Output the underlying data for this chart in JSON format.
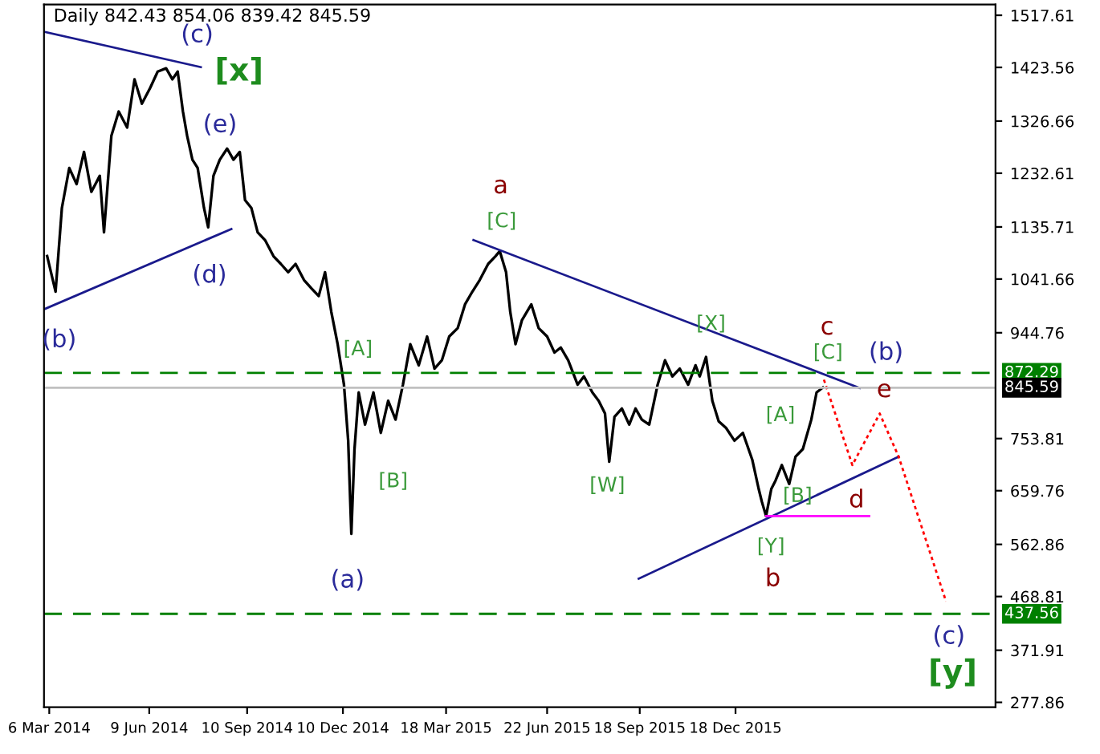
{
  "chart_data": {
    "type": "line",
    "title": "Daily 842.43 854.06 839.42 845.59",
    "xlim": [
      "2014-03-01",
      "2016-08-21"
    ],
    "ylim": [
      269,
      1537
    ],
    "xticks": [
      {
        "value": "2014-03-06",
        "label": "6 Mar 2014"
      },
      {
        "value": "2014-06-09",
        "label": "9 Jun 2014"
      },
      {
        "value": "2014-09-10",
        "label": "10 Sep 2014"
      },
      {
        "value": "2014-12-10",
        "label": "10 Dec 2014"
      },
      {
        "value": "2015-03-18",
        "label": "18 Mar 2015"
      },
      {
        "value": "2015-06-22",
        "label": "22 Jun 2015"
      },
      {
        "value": "2015-09-18",
        "label": "18 Sep 2015"
      },
      {
        "value": "2015-12-18",
        "label": "18 Dec 2015"
      }
    ],
    "yticks": [
      1517.61,
      1423.56,
      1326.66,
      1232.61,
      1135.71,
      1041.66,
      944.76,
      753.81,
      659.76,
      562.86,
      468.81,
      371.91,
      277.86
    ],
    "grid": false,
    "legend": false,
    "series": [
      {
        "color": "#000000",
        "line_style": "solid",
        "x": [
          "2014-03-04",
          "2014-03-12",
          "2014-03-18",
          "2014-03-25",
          "2014-04-01",
          "2014-04-08",
          "2014-04-15",
          "2014-04-23",
          "2014-04-27",
          "2014-05-04",
          "2014-05-11",
          "2014-05-19",
          "2014-05-26",
          "2014-06-02",
          "2014-06-10",
          "2014-06-17",
          "2014-06-25",
          "2014-07-01",
          "2014-07-06",
          "2014-07-11",
          "2014-07-15",
          "2014-07-20",
          "2014-07-25",
          "2014-07-31",
          "2014-08-04",
          "2014-08-09",
          "2014-08-15",
          "2014-08-22",
          "2014-08-28",
          "2014-09-03",
          "2014-09-08",
          "2014-09-14",
          "2014-09-20",
          "2014-09-27",
          "2014-10-05",
          "2014-10-12",
          "2014-10-19",
          "2014-10-26",
          "2014-11-03",
          "2014-11-10",
          "2014-11-17",
          "2014-11-23",
          "2014-11-29",
          "2014-12-05",
          "2014-12-11",
          "2014-12-15",
          "2014-12-18",
          "2014-12-21",
          "2014-12-25",
          "2014-12-31",
          "2015-01-08",
          "2015-01-15",
          "2015-01-22",
          "2015-01-29",
          "2015-02-05",
          "2015-02-12",
          "2015-02-20",
          "2015-02-28",
          "2015-03-07",
          "2015-03-14",
          "2015-03-21",
          "2015-03-29",
          "2015-04-05",
          "2015-04-12",
          "2015-04-19",
          "2015-04-27",
          "2015-05-04",
          "2015-05-08",
          "2015-05-14",
          "2015-05-18",
          "2015-05-23",
          "2015-05-29",
          "2015-06-07",
          "2015-06-14",
          "2015-06-22",
          "2015-06-29",
          "2015-07-05",
          "2015-07-12",
          "2015-07-21",
          "2015-07-27",
          "2015-08-04",
          "2015-08-10",
          "2015-08-16",
          "2015-08-20",
          "2015-08-25",
          "2015-09-01",
          "2015-09-08",
          "2015-09-14",
          "2015-09-20",
          "2015-09-27",
          "2015-10-05",
          "2015-10-12",
          "2015-10-19",
          "2015-10-26",
          "2015-11-03",
          "2015-11-10",
          "2015-11-14",
          "2015-11-20",
          "2015-11-26",
          "2015-12-02",
          "2015-12-09",
          "2015-12-17",
          "2015-12-25",
          "2016-01-03",
          "2016-01-09",
          "2016-01-12",
          "2016-01-16",
          "2016-01-21",
          "2016-01-25",
          "2016-01-31",
          "2016-02-07",
          "2016-02-13",
          "2016-02-20",
          "2016-02-28",
          "2016-03-04",
          "2016-03-10"
        ],
        "values": [
          1083,
          1019,
          1170,
          1242,
          1213,
          1271,
          1199,
          1228,
          1126,
          1300,
          1344,
          1315,
          1402,
          1358,
          1387,
          1416,
          1422,
          1402,
          1416,
          1344,
          1300,
          1257,
          1242,
          1170,
          1135,
          1228,
          1257,
          1277,
          1257,
          1271,
          1184,
          1170,
          1126,
          1112,
          1083,
          1069,
          1054,
          1069,
          1040,
          1025,
          1011,
          1054,
          982,
          924,
          851,
          750,
          582,
          735,
          837,
          779,
          837,
          764,
          822,
          788,
          851,
          924,
          886,
          938,
          880,
          895,
          938,
          953,
          996,
          1019,
          1040,
          1069,
          1083,
          1092,
          1054,
          982,
          924,
          967,
          996,
          953,
          938,
          909,
          918,
          895,
          851,
          866,
          837,
          822,
          799,
          712,
          793,
          808,
          779,
          808,
          788,
          779,
          851,
          895,
          866,
          880,
          851,
          886,
          866,
          901,
          822,
          785,
          773,
          750,
          764,
          715,
          663,
          640,
          614,
          663,
          678,
          706,
          672,
          721,
          735,
          788,
          837,
          846
        ]
      },
      {
        "color": "#1a1a8c",
        "line_style": "solid",
        "x": [
          "2014-03-01",
          "2014-07-28"
        ],
        "values": [
          1488,
          1424
        ]
      },
      {
        "color": "#1a1a8c",
        "line_style": "solid",
        "x": [
          "2014-03-01",
          "2014-08-26"
        ],
        "values": [
          987,
          1132
        ]
      },
      {
        "color": "#1a1a8c",
        "line_style": "solid",
        "x": [
          "2015-04-13",
          "2016-04-14"
        ],
        "values": [
          1112,
          845
        ]
      },
      {
        "color": "#1a1a8c",
        "line_style": "solid",
        "x": [
          "2015-09-17",
          "2016-05-21"
        ],
        "values": [
          501,
          721
        ]
      },
      {
        "color": "#ff00ff",
        "line_style": "solid",
        "x": [
          "2016-01-16",
          "2016-04-23"
        ],
        "values": [
          614,
          614
        ]
      },
      {
        "color": "#ff0000",
        "line_style": "dotted",
        "x": [
          "2016-03-11",
          "2016-04-07",
          "2016-05-03",
          "2016-05-21",
          "2016-07-05"
        ],
        "values": [
          860,
          706,
          799,
          721,
          460
        ]
      }
    ],
    "ref_lines": [
      {
        "axis": "y",
        "value": 872.29,
        "label": "872.29",
        "color": "#008000",
        "line_style": "dashed"
      },
      {
        "axis": "y",
        "value": 845.59,
        "label": "845.59",
        "color": "#c0c0c0",
        "line_style": "solid"
      },
      {
        "axis": "y",
        "value": 437.56,
        "label": "437.56",
        "color": "#008000",
        "line_style": "dashed"
      }
    ],
    "annotations": [
      "(c)",
      "[x]",
      "(e)",
      "(d)",
      "(b)",
      "[A]",
      "[B]",
      "(a)",
      "a",
      "[C]",
      "[W]",
      "[X]",
      "[A]",
      "c",
      "[C]",
      "(b)",
      "e",
      "[B]",
      "d",
      "[Y]",
      "b",
      "(c)",
      "[y]"
    ]
  }
}
